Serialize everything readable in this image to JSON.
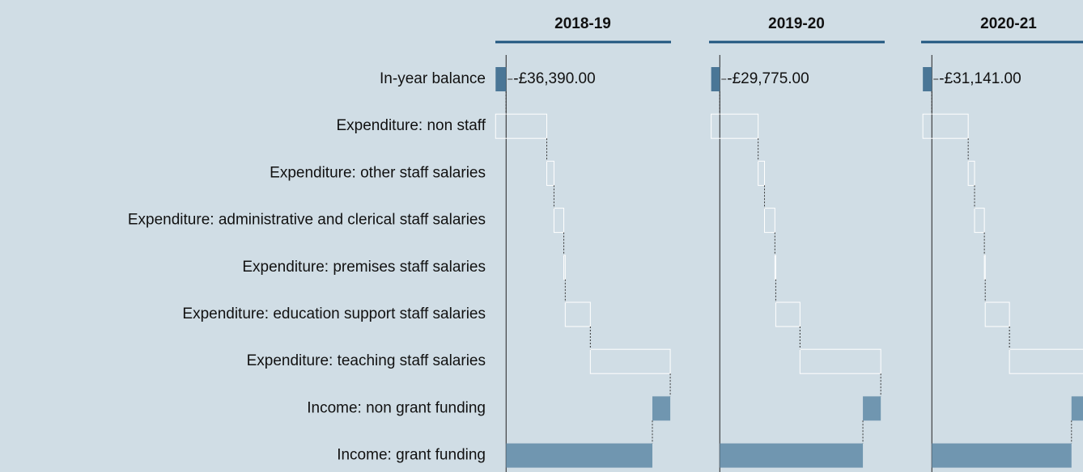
{
  "chart_data": [
    {
      "type": "waterfall",
      "title": "2018-19",
      "categories": [
        "In-year balance",
        "Expenditure: non staff",
        "Expenditure: other staff salaries",
        "Expenditure: administrative and clerical staff salaries",
        "Expenditure: premises staff salaries",
        "Expenditure: education support staff salaries",
        "Expenditure: teaching staff salaries",
        "Income: non grant funding",
        "Income: grant funding"
      ],
      "values": [
        -36390,
        -177390,
        -25000,
        -34000,
        -5000,
        -87000,
        -277000,
        62000,
        507000
      ],
      "value_labels": [
        "-£36,390.00",
        null,
        null,
        null,
        null,
        null,
        null,
        null,
        null
      ],
      "xlim": [
        -40000,
        580000
      ],
      "colors": {
        "income": "#7096b0",
        "expenditure": "none",
        "total": "#4a7696"
      }
    },
    {
      "type": "waterfall",
      "title": "2019-20",
      "values": [
        -29775,
        -162775,
        -22000,
        -36000,
        -3000,
        -84000,
        -280000,
        62000,
        496000
      ],
      "value_labels": [
        "-£29,775.00",
        null,
        null,
        null,
        null,
        null,
        null,
        null,
        null
      ],
      "xlim": [
        -40000,
        580000
      ],
      "colors": {
        "income": "#7096b0",
        "expenditure": "none",
        "total": "#4a7696"
      }
    },
    {
      "type": "waterfall",
      "title": "2020-21",
      "values": [
        -31141,
        -157141,
        -22000,
        -34000,
        -3000,
        -84000,
        -277000,
        62000,
        484000
      ],
      "value_labels": [
        "-£31,141.00",
        null,
        null,
        null,
        null,
        null,
        null,
        null,
        null
      ],
      "xlim": [
        -40000,
        580000
      ],
      "colors": {
        "income": "#7096b0",
        "expenditure": "none",
        "total": "#4a7696"
      }
    }
  ]
}
